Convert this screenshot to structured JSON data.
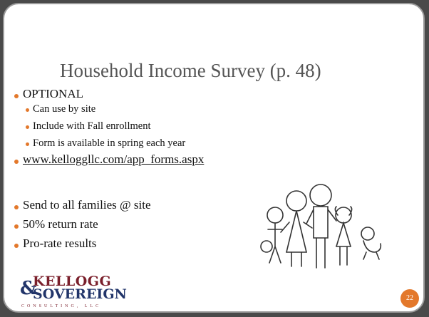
{
  "title": "Household Income Survey (p. 48)",
  "main_bullet": "OPTIONAL",
  "sub_bullets": [
    "Can use by site",
    "Include with Fall enrollment",
    "Form is available in spring each year"
  ],
  "link": "www.kelloggllc.com/app_forms.aspx",
  "bullets": [
    "Send to all families @ site",
    "50% return rate",
    "Pro-rate results"
  ],
  "logo": {
    "line1": "KELLOGG",
    "ampersand": "&",
    "line2": "SOVEREIGN",
    "tagline": "CONSULTING, LLC"
  },
  "page_number": "22"
}
